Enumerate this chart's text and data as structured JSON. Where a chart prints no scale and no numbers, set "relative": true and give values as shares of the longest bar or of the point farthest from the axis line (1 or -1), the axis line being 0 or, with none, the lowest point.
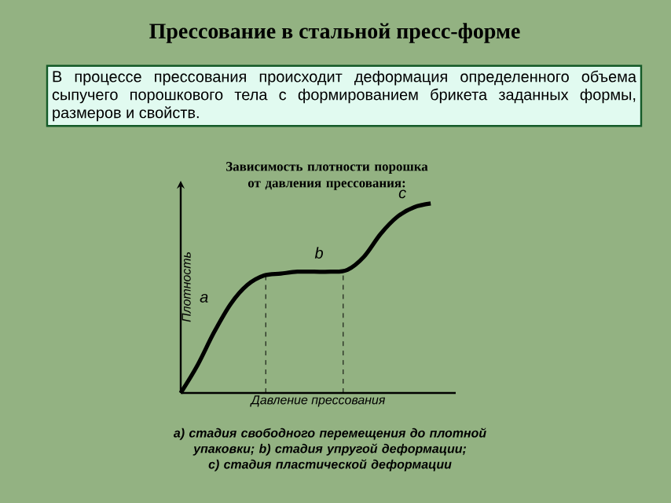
{
  "chart_data": {
    "type": "line",
    "relative": true,
    "title": "Прессование в стальной пресс-форме",
    "subtitle": "В процессе прессования происходит деформация определенного объема сыпучего порошкового тела с формированием брикета заданных формы, размеров и свойств.",
    "xlabel": "Давление прессования",
    "ylabel": "Плотность",
    "categories": [
      null,
      null,
      null,
      null,
      null,
      null,
      null,
      null,
      null,
      null,
      null,
      null,
      null,
      null,
      null,
      null
    ],
    "series": [
      {
        "color": "#000000",
        "values": [
          0,
          0.145,
          0.32,
          0.47,
          0.57,
          0.62,
          0.63,
          0.64,
          0.64,
          0.64,
          0.65,
          0.72,
          0.84,
          0.93,
          0.98,
          1
        ]
      }
    ],
    "annotations": [
      "Зависимость плотности порошка от давления прессования:",
      "a",
      "b",
      "c",
      "а) стадия свободного перемещения до плотной упаковки; b) стадия упругой деформации; с) стадия пластической деформации"
    ],
    "marker": "none",
    "line_style": "solid"
  }
}
